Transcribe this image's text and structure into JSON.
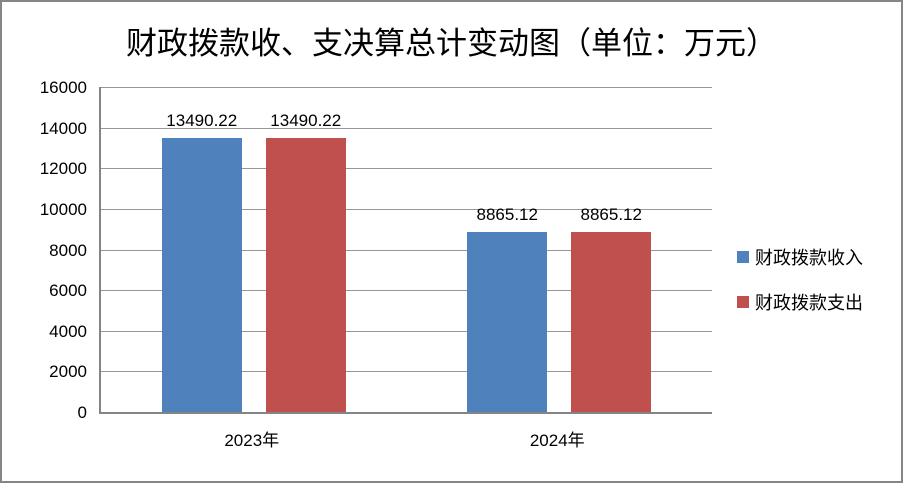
{
  "window": {
    "background": "#ffffff",
    "border_color": "#868686"
  },
  "chart_data": {
    "type": "bar",
    "title": "财政拨款收、支决算总计变动图（单位：万元）",
    "categories": [
      "2023年",
      "2024年"
    ],
    "series": [
      {
        "name": "财政拨款收入",
        "color": "#4F81BD",
        "values": [
          13490.22,
          8865.12
        ],
        "labels": [
          "13490.22",
          "8865.12"
        ]
      },
      {
        "name": "财政拨款支出",
        "color": "#C0504D",
        "values": [
          13490.22,
          8865.12
        ],
        "labels": [
          "13490.22",
          "8865.12"
        ]
      }
    ],
    "ylim": [
      0,
      16000
    ],
    "ytick_interval": 2000,
    "yticks": [
      0,
      2000,
      4000,
      6000,
      8000,
      10000,
      12000,
      14000,
      16000
    ],
    "grid": true,
    "gridline_color": "#979797",
    "axis_color": "#848484",
    "data_labels_shown": true,
    "legend_position": "right"
  }
}
